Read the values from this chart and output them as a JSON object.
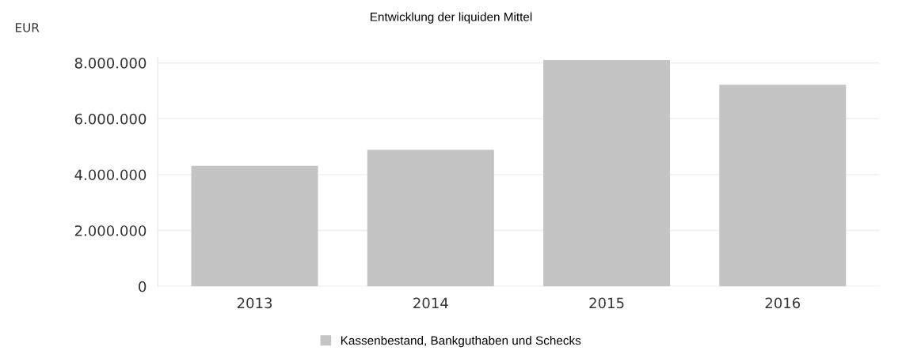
{
  "chart_data": {
    "type": "bar",
    "title": "Entwicklung der liquiden Mittel",
    "ylabel": "EUR",
    "categories": [
      "2013",
      "2014",
      "2015",
      "2016"
    ],
    "series": [
      {
        "name": "Kassenbestand, Bankguthaben und Schecks",
        "color": "#c4c4c4",
        "values": [
          4320000,
          4890000,
          8100000,
          7220000
        ]
      }
    ],
    "yticks": [
      0,
      {
        "value": 2000000,
        "label": "2.000.000"
      },
      {
        "value": 4000000,
        "label": "4.000.000"
      },
      {
        "value": 6000000,
        "label": "6.000.000"
      },
      {
        "value": 8000000,
        "label": "8.000.000"
      }
    ],
    "ylim": [
      0,
      8200000
    ],
    "grid": "y",
    "legend": "bottom"
  }
}
